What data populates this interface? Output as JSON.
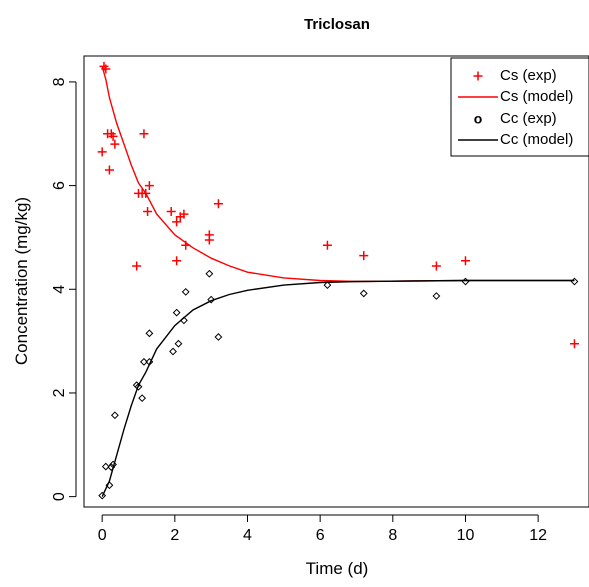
{
  "chart_data": {
    "type": "scatter",
    "title": "Triclosan",
    "xlabel": "Time (d)",
    "ylabel": "Concentration (mg/kg)",
    "xlim": [
      -0.5,
      13.4
    ],
    "ylim": [
      -0.2,
      8.5
    ],
    "x_ticks": [
      0,
      2,
      4,
      6,
      8,
      10,
      12
    ],
    "y_ticks": [
      0,
      2,
      4,
      6,
      8
    ],
    "grid": false,
    "legend_position": "top-right",
    "series": [
      {
        "name": "Cs (exp)",
        "kind": "points",
        "marker": "plus",
        "color": "#ff0000",
        "points": [
          [
            0.0,
            6.65
          ],
          [
            0.05,
            8.3
          ],
          [
            0.1,
            8.25
          ],
          [
            0.15,
            7.0
          ],
          [
            0.2,
            6.3
          ],
          [
            0.25,
            7.0
          ],
          [
            0.3,
            6.95
          ],
          [
            0.35,
            6.8
          ],
          [
            0.95,
            4.45
          ],
          [
            1.0,
            5.85
          ],
          [
            1.1,
            5.85
          ],
          [
            1.15,
            7.0
          ],
          [
            1.2,
            5.85
          ],
          [
            1.25,
            5.5
          ],
          [
            1.3,
            6.0
          ],
          [
            1.9,
            5.5
          ],
          [
            2.05,
            5.3
          ],
          [
            2.05,
            4.55
          ],
          [
            2.15,
            5.4
          ],
          [
            2.25,
            5.45
          ],
          [
            2.3,
            4.85
          ],
          [
            2.95,
            4.95
          ],
          [
            2.95,
            5.05
          ],
          [
            3.2,
            5.65
          ],
          [
            6.2,
            4.85
          ],
          [
            7.2,
            4.65
          ],
          [
            9.2,
            4.45
          ],
          [
            10.0,
            4.55
          ],
          [
            13.0,
            2.95
          ]
        ]
      },
      {
        "name": "Cs (model)",
        "kind": "line",
        "color": "#ff0000",
        "points": [
          [
            0,
            8.3
          ],
          [
            0.1,
            8.05
          ],
          [
            0.2,
            7.7
          ],
          [
            0.4,
            7.2
          ],
          [
            0.6,
            6.8
          ],
          [
            0.8,
            6.4
          ],
          [
            1.0,
            6.05
          ],
          [
            1.2,
            5.85
          ],
          [
            1.5,
            5.45
          ],
          [
            2.0,
            5.05
          ],
          [
            2.5,
            4.8
          ],
          [
            3.0,
            4.6
          ],
          [
            3.5,
            4.45
          ],
          [
            4.0,
            4.33
          ],
          [
            5.0,
            4.22
          ],
          [
            6.0,
            4.17
          ],
          [
            7.0,
            4.15
          ],
          [
            8.5,
            4.16
          ],
          [
            10,
            4.17
          ],
          [
            13,
            4.17
          ]
        ]
      },
      {
        "name": "Cc (exp)",
        "kind": "points",
        "marker": "diamond",
        "color": "#000000",
        "points": [
          [
            0.0,
            0.02
          ],
          [
            0.1,
            0.58
          ],
          [
            0.2,
            0.22
          ],
          [
            0.25,
            0.57
          ],
          [
            0.3,
            0.62
          ],
          [
            0.35,
            1.57
          ],
          [
            0.95,
            2.15
          ],
          [
            1.0,
            2.12
          ],
          [
            1.1,
            1.9
          ],
          [
            1.15,
            2.6
          ],
          [
            1.3,
            2.6
          ],
          [
            1.3,
            3.15
          ],
          [
            1.95,
            2.8
          ],
          [
            2.05,
            3.55
          ],
          [
            2.1,
            2.95
          ],
          [
            2.25,
            3.4
          ],
          [
            2.3,
            3.95
          ],
          [
            2.95,
            4.3
          ],
          [
            3.0,
            3.8
          ],
          [
            3.2,
            3.08
          ],
          [
            6.2,
            4.08
          ],
          [
            7.2,
            3.92
          ],
          [
            9.2,
            3.87
          ],
          [
            10.0,
            4.15
          ],
          [
            13.0,
            4.15
          ]
        ]
      },
      {
        "name": "Cc (model)",
        "kind": "line",
        "color": "#000000",
        "points": [
          [
            0,
            0
          ],
          [
            0.2,
            0.3
          ],
          [
            0.4,
            0.8
          ],
          [
            0.6,
            1.3
          ],
          [
            0.8,
            1.75
          ],
          [
            1.0,
            2.15
          ],
          [
            1.2,
            2.4
          ],
          [
            1.5,
            2.85
          ],
          [
            2.0,
            3.3
          ],
          [
            2.5,
            3.6
          ],
          [
            3.0,
            3.78
          ],
          [
            3.5,
            3.9
          ],
          [
            4.0,
            3.98
          ],
          [
            5.0,
            4.08
          ],
          [
            6.0,
            4.13
          ],
          [
            7.0,
            4.15
          ],
          [
            8.5,
            4.16
          ],
          [
            10,
            4.17
          ],
          [
            13,
            4.17
          ]
        ]
      }
    ],
    "legend": [
      {
        "symbol": "+",
        "label": "Cs (exp)",
        "color": "#ff0000"
      },
      {
        "symbol": "line",
        "label": "Cs (model)",
        "color": "#ff0000"
      },
      {
        "symbol": "o",
        "label": "Cc (exp)",
        "color": "#000000"
      },
      {
        "symbol": "line",
        "label": "Cc (model)",
        "color": "#000000"
      }
    ]
  }
}
